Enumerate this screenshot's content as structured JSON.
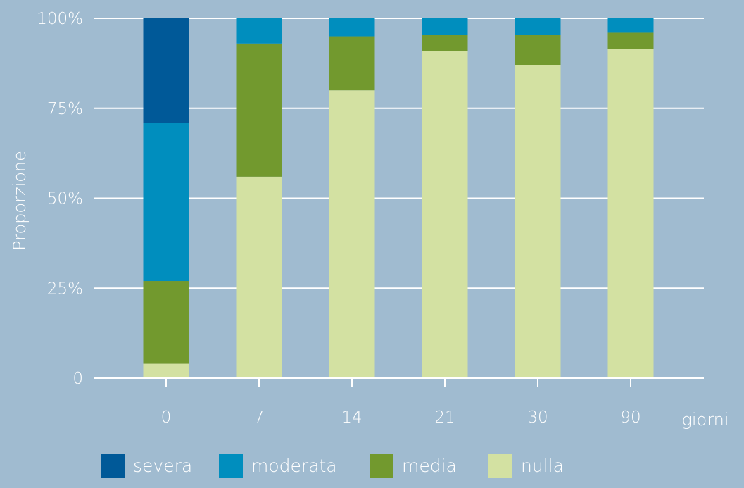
{
  "chart_data": {
    "type": "bar",
    "stacked": true,
    "percent": true,
    "categories": [
      "0",
      "7",
      "14",
      "21",
      "30",
      "90"
    ],
    "xlabel": "giorni",
    "ylabel": "Proporzione",
    "ylim": [
      0,
      100
    ],
    "yticks": [
      {
        "value": 0,
        "label": "0"
      },
      {
        "value": 25,
        "label": "25%"
      },
      {
        "value": 50,
        "label": "50%"
      },
      {
        "value": 75,
        "label": "75%"
      },
      {
        "value": 100,
        "label": "100%"
      }
    ],
    "grid": "horizontal",
    "legend_position": "bottom",
    "series": [
      {
        "name": "nulla",
        "color": "#d3e1a2",
        "values": [
          4,
          56,
          80,
          91,
          87,
          91.5
        ]
      },
      {
        "name": "media",
        "color": "#72992e",
        "values": [
          23,
          37,
          15,
          4.5,
          8.5,
          4.5
        ]
      },
      {
        "name": "moderata",
        "color": "#008ebe",
        "values": [
          44,
          7,
          5,
          4.5,
          4.5,
          4
        ]
      },
      {
        "name": "severa",
        "color": "#005998",
        "values": [
          29,
          0,
          0,
          0,
          0,
          0
        ]
      }
    ],
    "legend_order": [
      "severa",
      "moderata",
      "media",
      "nulla"
    ]
  }
}
